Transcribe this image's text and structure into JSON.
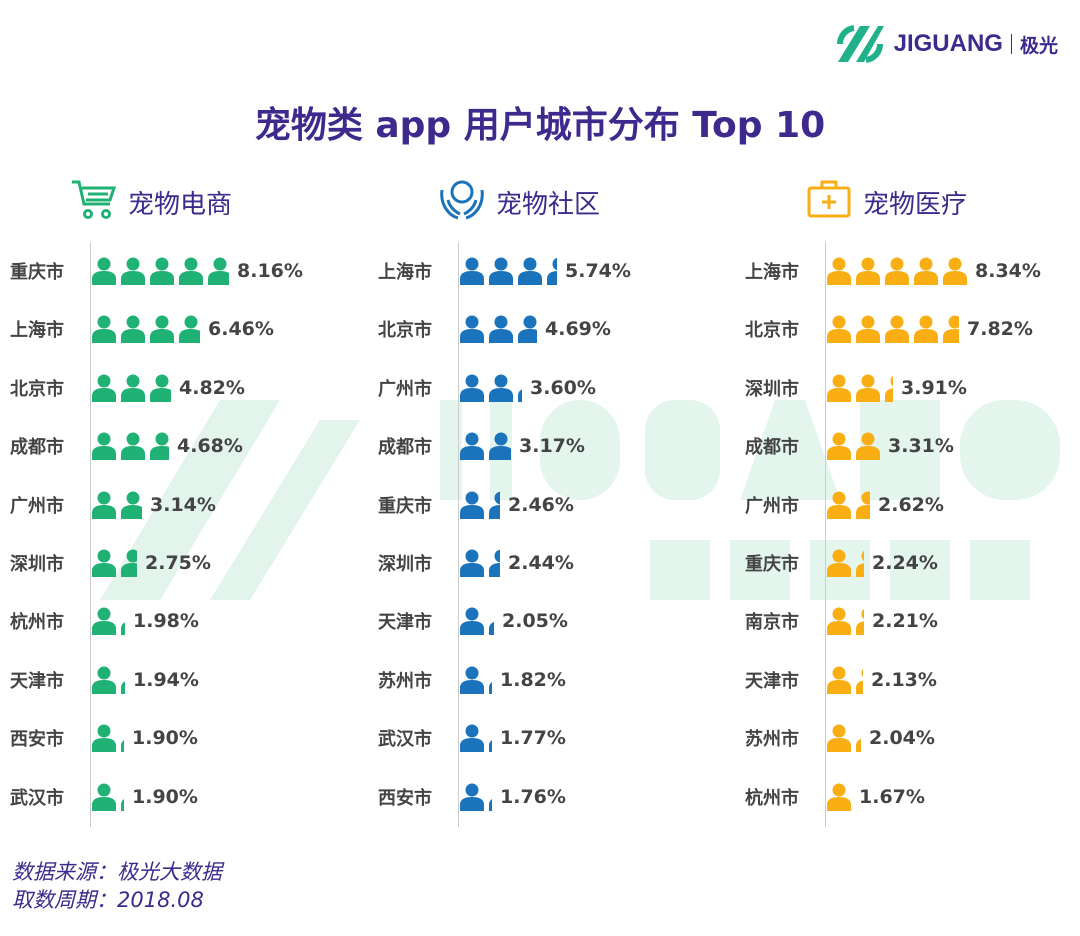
{
  "logo": {
    "brand": "JIGUANG",
    "cn": "极光"
  },
  "watermark": {
    "text1": "JIGUANG",
    "text2": "极光大数据"
  },
  "chart_data": {
    "type": "pictogram",
    "title": "宠物类 app 用户城市分布 Top 10",
    "unit_per_icon": 1.67,
    "panels": [
      {
        "name": "宠物电商",
        "icon": "shopping-cart-icon",
        "color": "#20b175",
        "rows": [
          {
            "city": "重庆市",
            "value": "8.16%"
          },
          {
            "city": "上海市",
            "value": "6.46%"
          },
          {
            "city": "北京市",
            "value": "4.82%"
          },
          {
            "city": "成都市",
            "value": "4.68%"
          },
          {
            "city": "广州市",
            "value": "3.14%"
          },
          {
            "city": "深圳市",
            "value": "2.75%"
          },
          {
            "city": "杭州市",
            "value": "1.98%"
          },
          {
            "city": "天津市",
            "value": "1.94%"
          },
          {
            "city": "西安市",
            "value": "1.90%"
          },
          {
            "city": "武汉市",
            "value": "1.90%"
          }
        ]
      },
      {
        "name": "宠物社区",
        "icon": "community-hands-icon",
        "color": "#1a73bb",
        "rows": [
          {
            "city": "上海市",
            "value": "5.74%"
          },
          {
            "city": "北京市",
            "value": "4.69%"
          },
          {
            "city": "广州市",
            "value": "3.60%"
          },
          {
            "city": "成都市",
            "value": "3.17%"
          },
          {
            "city": "重庆市",
            "value": "2.46%"
          },
          {
            "city": "深圳市",
            "value": "2.44%"
          },
          {
            "city": "天津市",
            "value": "2.05%"
          },
          {
            "city": "苏州市",
            "value": "1.82%"
          },
          {
            "city": "武汉市",
            "value": "1.77%"
          },
          {
            "city": "西安市",
            "value": "1.76%"
          }
        ]
      },
      {
        "name": "宠物医疗",
        "icon": "medical-kit-icon",
        "color": "#f9ae14",
        "rows": [
          {
            "city": "上海市",
            "value": "8.34%"
          },
          {
            "city": "北京市",
            "value": "7.82%"
          },
          {
            "city": "深圳市",
            "value": "3.91%"
          },
          {
            "city": "成都市",
            "value": "3.31%"
          },
          {
            "city": "广州市",
            "value": "2.62%"
          },
          {
            "city": "重庆市",
            "value": "2.24%"
          },
          {
            "city": "南京市",
            "value": "2.21%"
          },
          {
            "city": "天津市",
            "value": "2.13%"
          },
          {
            "city": "苏州市",
            "value": "2.04%"
          },
          {
            "city": "杭州市",
            "value": "1.67%"
          }
        ]
      }
    ]
  },
  "footer": {
    "source": "数据来源：极光大数据",
    "period": "取数周期：2018.08"
  }
}
